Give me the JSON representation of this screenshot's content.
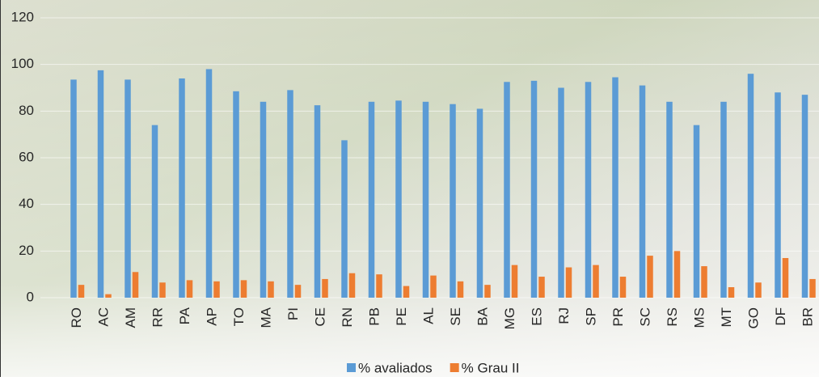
{
  "chart_data": {
    "type": "bar",
    "categories": [
      "RO",
      "AC",
      "AM",
      "RR",
      "PA",
      "AP",
      "TO",
      "MA",
      "PI",
      "CE",
      "RN",
      "PB",
      "PE",
      "AL",
      "SE",
      "BA",
      "MG",
      "ES",
      "RJ",
      "SP",
      "PR",
      "SC",
      "RS",
      "MS",
      "MT",
      "GO",
      "DF",
      "BR"
    ],
    "series": [
      {
        "name": "% avaliados",
        "color": "#5b9bd5",
        "values": [
          93.5,
          97.5,
          93.5,
          74,
          94,
          98,
          88.5,
          84,
          89,
          82.5,
          67.5,
          84,
          84.5,
          84,
          83,
          81,
          92.5,
          93,
          90,
          92.5,
          94.5,
          91,
          84,
          74,
          84,
          96,
          88,
          87
        ]
      },
      {
        "name": "% Grau II",
        "color": "#ed7d31",
        "values": [
          5.5,
          1.5,
          11,
          6.5,
          7.5,
          7,
          7.5,
          7,
          5.5,
          8,
          10.5,
          10,
          5,
          9.5,
          7,
          5.5,
          14,
          9,
          13,
          14,
          9,
          18,
          20,
          13.5,
          4.5,
          6.5,
          17,
          8
        ]
      }
    ],
    "ylim": [
      0,
      120
    ],
    "yticks": [
      0,
      20,
      40,
      60,
      80,
      100,
      120
    ],
    "grid": true,
    "legend": "bottom"
  }
}
